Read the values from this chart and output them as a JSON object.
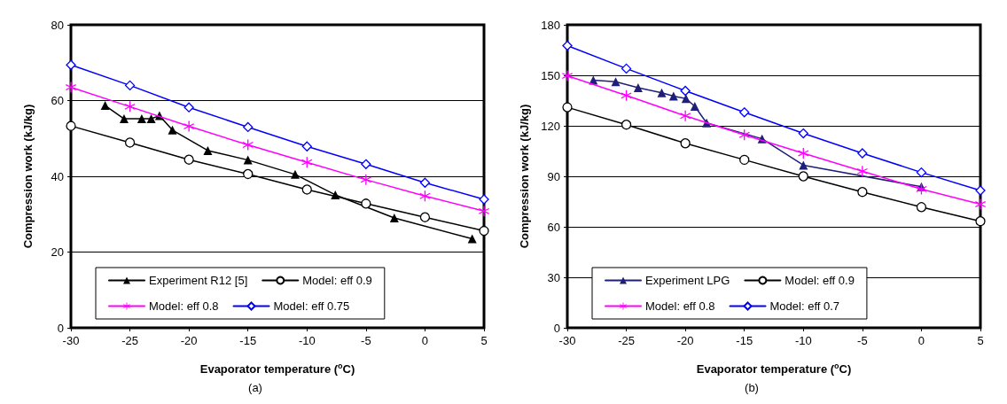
{
  "chart_data": [
    {
      "type": "line",
      "xlabel": "Evaporator temperature ($^{o}$C)",
      "ylabel": "Compression work (kJ/kg)",
      "annotations": [
        "(a)"
      ],
      "xlim": [
        -30,
        5
      ],
      "xticks": [
        -30,
        -25,
        -20,
        -15,
        -10,
        -5,
        0,
        5
      ],
      "ylim": [
        0,
        80
      ],
      "yticks": [
        0,
        20,
        40,
        60,
        80
      ],
      "grid": "y",
      "legend": "bottom",
      "series": [
        {
          "name": "Experiment R12 [5]",
          "color": "#000000",
          "marker": "triangle",
          "x": [
            -27.1,
            -25.5,
            -24.0,
            -23.2,
            -22.5,
            -21.4,
            -18.4,
            -15.0,
            -11.0,
            -7.6,
            -2.6,
            4.0
          ],
          "values": [
            58.7,
            55.2,
            55.2,
            55.2,
            56.0,
            52.2,
            46.8,
            44.3,
            40.5,
            35.1,
            29.0,
            23.5
          ]
        },
        {
          "name": "Model: eff 0.9",
          "color": "#000000",
          "marker": "circle",
          "x": [
            -30,
            -25,
            -20,
            -15,
            -10,
            -5,
            0,
            5
          ],
          "values": [
            53.3,
            48.9,
            44.4,
            40.6,
            36.5,
            32.8,
            29.2,
            25.6
          ]
        },
        {
          "name": "Model: eff 0.8",
          "color": "#ff00ff",
          "marker": "star",
          "x": [
            -30,
            -25,
            -20,
            -15,
            -10,
            -5,
            0,
            5
          ],
          "values": [
            63.5,
            58.4,
            53.2,
            48.3,
            43.7,
            39.1,
            34.8,
            30.8
          ]
        },
        {
          "name": "Model: eff 0.75",
          "color": "#0000ff",
          "marker": "diamond",
          "x": [
            -30,
            -25,
            -20,
            -15,
            -10,
            -5,
            0,
            5
          ],
          "values": [
            69.4,
            64.0,
            58.2,
            53.0,
            47.9,
            43.2,
            38.3,
            33.9
          ]
        }
      ]
    },
    {
      "type": "line",
      "xlabel": "Evaporator temperature ($^{o}$C)",
      "ylabel": "Compression work (kJ/kg)",
      "annotations": [
        "(b)"
      ],
      "xlim": [
        -30,
        5
      ],
      "xticks": [
        -30,
        -25,
        -20,
        -15,
        -10,
        -5,
        0,
        5
      ],
      "ylim": [
        0,
        180
      ],
      "yticks": [
        0,
        30,
        60,
        90,
        120,
        150,
        180
      ],
      "grid": "y",
      "legend": "bottom",
      "series": [
        {
          "name": "Experiment LPG",
          "color": "#1f1f7a",
          "marker": "triangle",
          "x": [
            -27.8,
            -25.9,
            -24.0,
            -22.0,
            -21.0,
            -19.95,
            -19.2,
            -18.2,
            -13.5,
            -10.0,
            0.0
          ],
          "values": [
            147.1,
            146.2,
            142.6,
            139.6,
            137.6,
            136.2,
            131.6,
            121.7,
            112.3,
            96.6,
            83.8
          ]
        },
        {
          "name": "Model: eff 0.9",
          "color": "#000000",
          "marker": "circle",
          "x": [
            -30,
            -25,
            -20,
            -15,
            -10,
            -5,
            0,
            5
          ],
          "values": [
            131.0,
            120.7,
            109.6,
            99.8,
            90.0,
            80.7,
            71.7,
            63.3
          ]
        },
        {
          "name": "Model: eff 0.8",
          "color": "#ff00ff",
          "marker": "star",
          "x": [
            -30,
            -25,
            -20,
            -15,
            -10,
            -5,
            0,
            5
          ],
          "values": [
            149.7,
            138.0,
            125.9,
            114.6,
            103.7,
            93.0,
            82.4,
            73.4
          ]
        },
        {
          "name": "Model: eff 0.7",
          "color": "#0000ff",
          "marker": "diamond",
          "x": [
            -30,
            -25,
            -20,
            -15,
            -10,
            -5,
            0,
            5
          ],
          "values": [
            167.6,
            154.0,
            140.8,
            128.0,
            115.5,
            103.7,
            92.3,
            81.6
          ]
        }
      ]
    }
  ]
}
